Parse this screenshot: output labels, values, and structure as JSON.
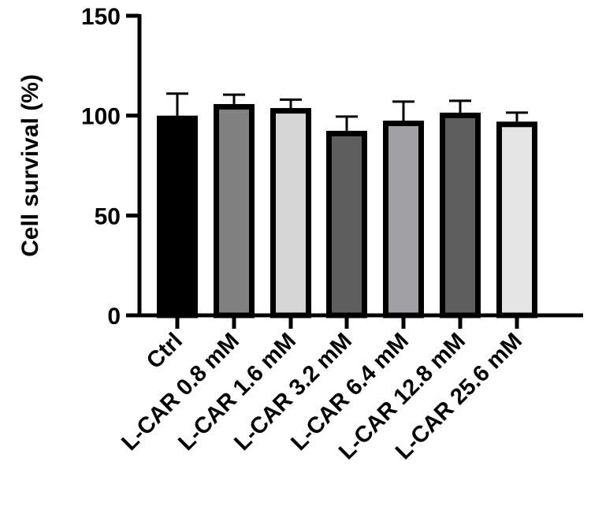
{
  "chart_data": {
    "type": "bar",
    "title": "",
    "xlabel": "",
    "ylabel": "Cell survival (%)",
    "ylim": [
      0,
      150
    ],
    "yticks": [
      0,
      50,
      100,
      150
    ],
    "grid": false,
    "legend": null,
    "categories": [
      "Ctrl",
      "L-CAR 0.8 mM",
      "L-CAR 1.6 mM",
      "L-CAR 3.2 mM",
      "L-CAR 6.4 mM",
      "L-CAR 12.8 mM",
      "L-CAR 25.6 mM"
    ],
    "values": [
      100,
      105.8,
      103.8,
      92.4,
      97.5,
      101.5,
      97.0
    ],
    "error_upper": [
      11,
      4.7,
      4.2,
      7.1,
      9.5,
      5.9,
      4.5
    ],
    "bar_colors": [
      "#000000",
      "#808080",
      "#d6d6d6",
      "#5e5e5e",
      "#a0a0a4",
      "#5e5e5e",
      "#e4e4e4"
    ],
    "bar_border_color": "#000000"
  }
}
